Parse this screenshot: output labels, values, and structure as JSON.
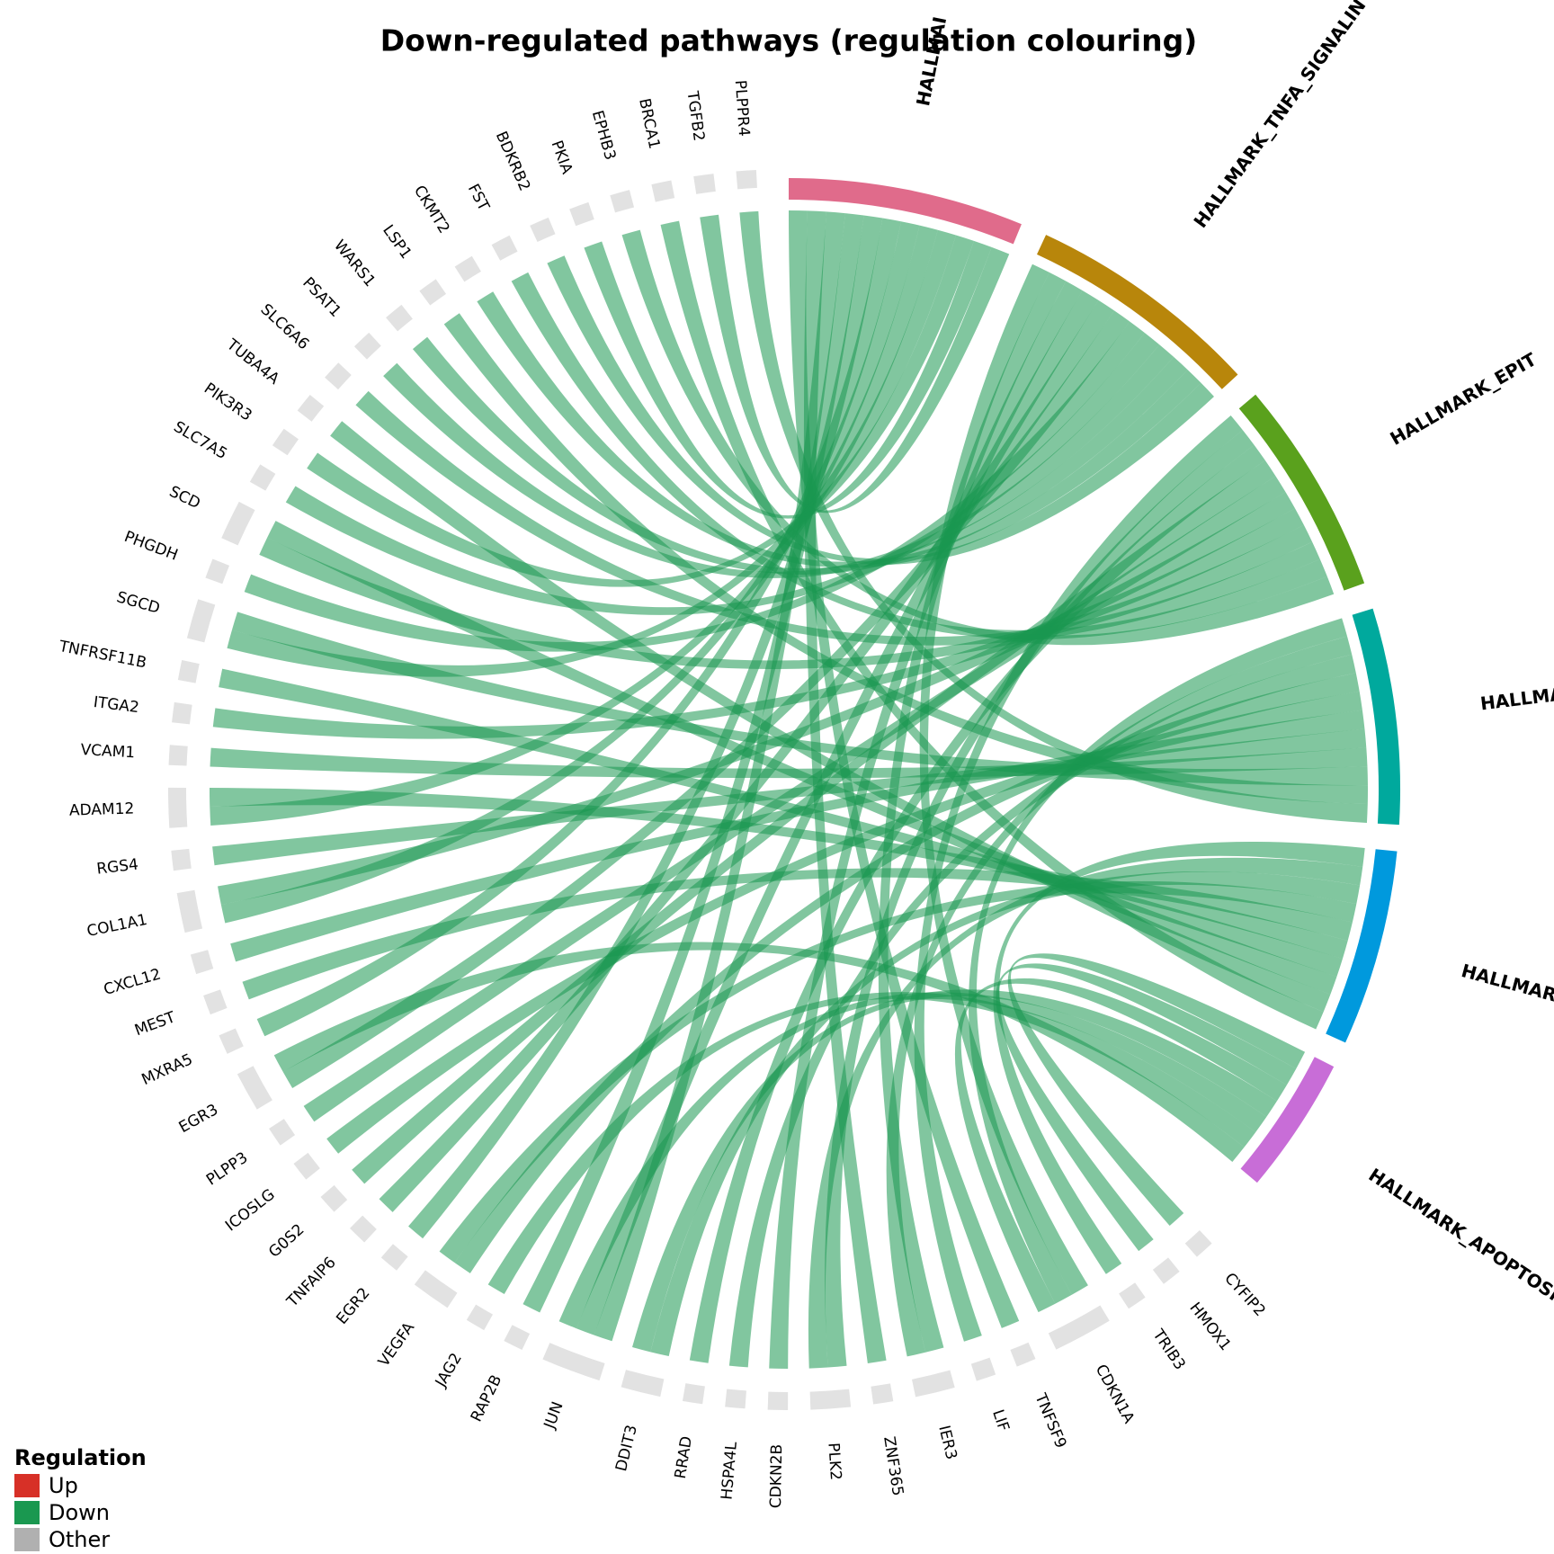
{
  "chart_data": {
    "type": "chord",
    "title": "Down-regulated pathways (regulation colouring)",
    "genes": [
      "PLPPR4",
      "TGFB2",
      "BRCA1",
      "EPHB3",
      "PKIA",
      "BDKRB2",
      "FST",
      "CKMT2",
      "LSP1",
      "WARS1",
      "PSAT1",
      "SLC6A6",
      "TUBA4A",
      "PIK3R3",
      "SLC7A5",
      "SCD",
      "PHGDH",
      "SGCD",
      "TNFRSF11B",
      "ITGA2",
      "VCAM1",
      "ADAM12",
      "RGS4",
      "COL1A1",
      "CXCL12",
      "MEST",
      "MXRA5",
      "EGR3",
      "PLPP3",
      "ICOSLG",
      "G0S2",
      "TNFAIP6",
      "EGR2",
      "VEGFA",
      "JAG2",
      "RAP2B",
      "JUN",
      "DDIT3",
      "RRAD",
      "HSPA4L",
      "CDKN2B",
      "PLK2",
      "ZNF365",
      "IER3",
      "LIF",
      "TNFSF9",
      "CDKN1A",
      "TRIB3",
      "HMOX1",
      "CYFIP2"
    ],
    "pathways": [
      {
        "name": "HALLMAI",
        "color": "#e06b8b"
      },
      {
        "name": "HALLMARK_TNFA_SIGNALIN",
        "color": "#b8860b"
      },
      {
        "name": "HALLMARK_EPIT",
        "color": "#5aa11d"
      },
      {
        "name": "HALLMAI",
        "color": "#00a99d"
      },
      {
        "name": "HALLMARK_",
        "color": "#0099dd"
      },
      {
        "name": "HALLMARK_APOPTOSIS",
        "color": "#c86dd7"
      }
    ],
    "gene_pathways": [
      [
        3
      ],
      [
        0
      ],
      [
        4
      ],
      [
        2
      ],
      [
        0
      ],
      [
        1
      ],
      [
        2
      ],
      [
        1
      ],
      [
        3
      ],
      [
        1
      ],
      [
        1
      ],
      [
        2
      ],
      [
        4
      ],
      [
        0
      ],
      [
        1
      ],
      [
        2,
        4
      ],
      [
        1
      ],
      [
        0,
        3
      ],
      [
        4
      ],
      [
        2
      ],
      [
        3
      ],
      [
        0,
        4
      ],
      [
        3
      ],
      [
        0,
        2
      ],
      [
        3
      ],
      [
        4
      ],
      [
        0
      ],
      [
        1,
        5
      ],
      [
        2
      ],
      [
        3
      ],
      [
        2
      ],
      [
        1
      ],
      [
        0
      ],
      [
        3,
        4
      ],
      [
        5
      ],
      [
        0
      ],
      [
        0,
        1,
        5
      ],
      [
        4,
        5
      ],
      [
        2
      ],
      [
        3
      ],
      [
        1
      ],
      [
        2,
        4
      ],
      [
        0
      ],
      [
        1,
        3
      ],
      [
        2
      ],
      [
        0
      ],
      [
        1,
        3,
        5
      ],
      [
        4
      ],
      [
        5
      ],
      [
        5
      ]
    ],
    "gene_color": "#e2e2e2",
    "chord_color": "#1a9850",
    "legend": {
      "title": "Regulation",
      "items": [
        {
          "name": "Up",
          "color": "#d73027"
        },
        {
          "name": "Down",
          "color": "#1a9850"
        },
        {
          "name": "Other",
          "color": "#b0b0b0"
        }
      ]
    }
  }
}
